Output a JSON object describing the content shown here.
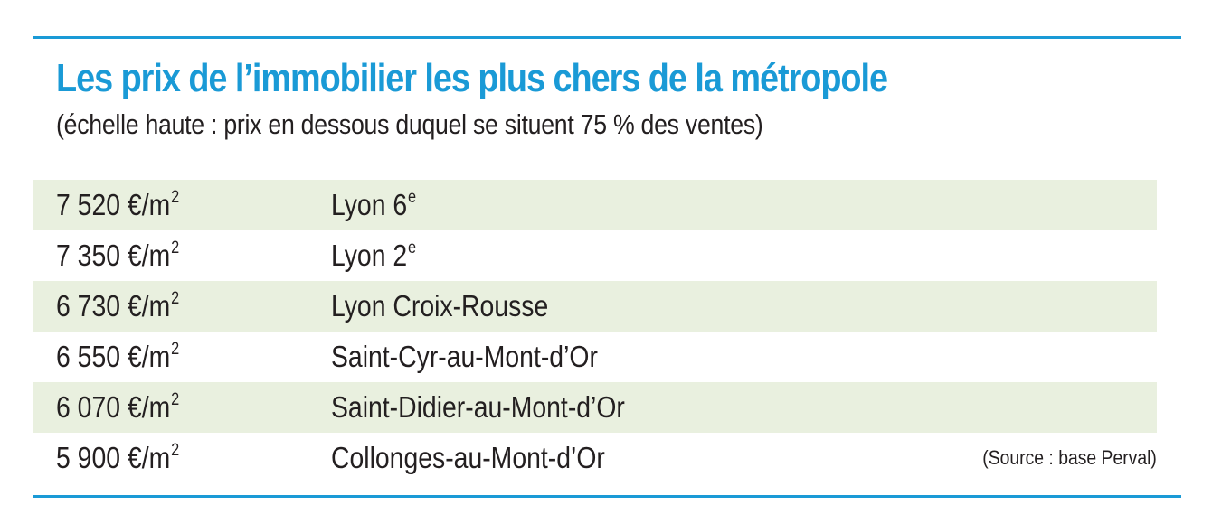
{
  "title": "Les prix de l’immobilier les plus chers de la métropole",
  "subtitle": "(échelle haute : prix en dessous duquel se situent 75 % des ventes)",
  "rows": [
    {
      "price": "7 520 €/m",
      "price_sup": "2",
      "place": "Lyon 6",
      "place_sup": "e"
    },
    {
      "price": "7 350 €/m",
      "price_sup": "2",
      "place": "Lyon 2",
      "place_sup": "e"
    },
    {
      "price": "6 730 €/m",
      "price_sup": "2",
      "place": "Lyon Croix-Rousse",
      "place_sup": ""
    },
    {
      "price": "6 550 €/m",
      "price_sup": "2",
      "place": "Saint-Cyr-au-Mont-d’Or",
      "place_sup": ""
    },
    {
      "price": "6 070 €/m",
      "price_sup": "2",
      "place": "Saint-Didier-au-Mont-d’Or",
      "place_sup": ""
    },
    {
      "price": "5 900 €/m",
      "price_sup": "2",
      "place": "Collonges-au-Mont-d’Or",
      "place_sup": ""
    }
  ],
  "source": "(Source : base Perval)",
  "colors": {
    "accent": "#1a9ad6",
    "row_shade": "#e9f0df",
    "text": "#231f20"
  }
}
